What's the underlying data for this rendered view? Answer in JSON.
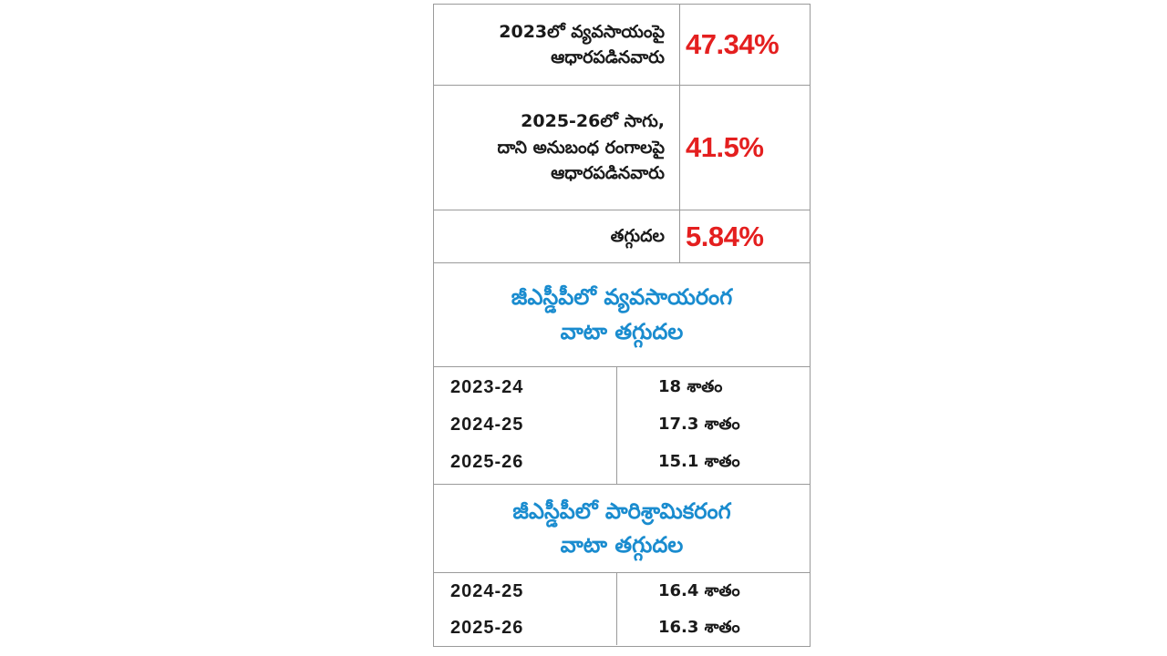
{
  "colors": {
    "stat_value": "#e41f1f",
    "heading": "#1a8ccf",
    "text": "#1a1a1a",
    "border": "#9a9a9a"
  },
  "stats": [
    {
      "label_lines": [
        "2023లో వ్యవసాయంపై",
        "ఆధారపడినవారు"
      ],
      "value": "47.34%"
    },
    {
      "label_lines": [
        "2025-26లో సాగు,",
        "దాని అనుబంధ రంగాలపై",
        "ఆధారపడినవారు"
      ],
      "value": "41.5%"
    },
    {
      "label_lines": [
        "తగ్గుదల"
      ],
      "value": "5.84%"
    }
  ],
  "agriculture_section": {
    "heading_lines": [
      "జీఎస్డీపీలో వ్యవసాయరంగ",
      "వాటా తగ్గుదల"
    ],
    "rows": [
      {
        "year": "2023-24",
        "share": "18 శాతం"
      },
      {
        "year": "2024-25",
        "share": "17.3 శాతం"
      },
      {
        "year": "2025-26",
        "share": "15.1 శాతం"
      }
    ]
  },
  "industry_section": {
    "heading_lines": [
      "జీఎస్డీపీలో పారిశ్రామికరంగ",
      "వాటా తగ్గుదల"
    ],
    "rows": [
      {
        "year": "2024-25",
        "share": "16.4 శాతం"
      },
      {
        "year": "2025-26",
        "share": "16.3 శాతం"
      }
    ]
  }
}
